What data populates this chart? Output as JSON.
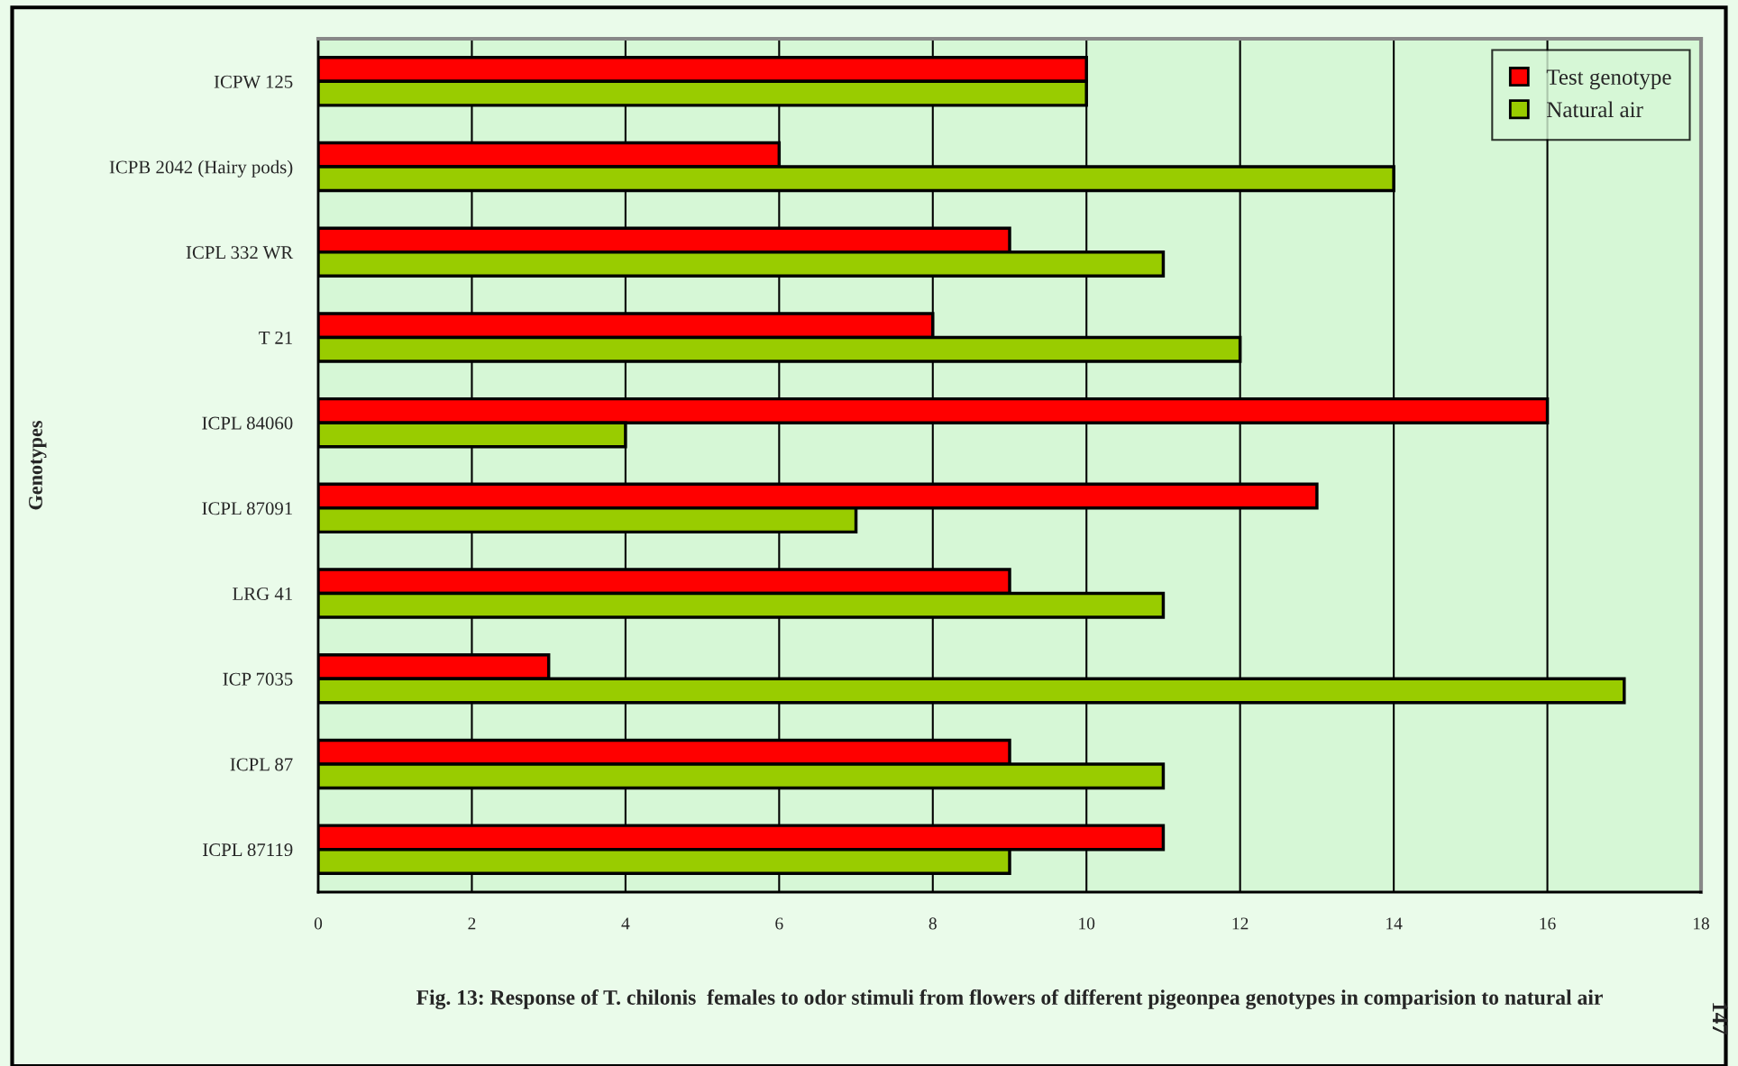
{
  "chart_data": {
    "type": "bar",
    "orientation": "horizontal",
    "title": "Fig. 13: Response of T. chilonis  females to odor stimuli from flowers of different pigeonpea genotypes in comparision to natural air",
    "ylabel": "Genotypes",
    "categories": [
      "ICPW 125",
      "ICPB 2042 (Hairy pods)",
      "ICPL 332 WR",
      "T 21",
      "ICPL 84060",
      "ICPL 87091",
      "LRG 41",
      "ICP 7035",
      "ICPL 87",
      "ICPL 87119"
    ],
    "series": [
      {
        "name": "Test genotype",
        "color": "#ff0000",
        "values": [
          10,
          6,
          9,
          8,
          16,
          13,
          9,
          3,
          9,
          11
        ]
      },
      {
        "name": "Natural air",
        "color": "#99cc00",
        "values": [
          10,
          14,
          11,
          12,
          4,
          7,
          11,
          17,
          11,
          9
        ]
      }
    ],
    "xlim": [
      0,
      18
    ],
    "xticks": [
      0,
      2,
      4,
      6,
      8,
      10,
      12,
      14,
      16,
      18
    ],
    "grid": "x",
    "legend": "top right",
    "annotations": [
      "147"
    ]
  }
}
